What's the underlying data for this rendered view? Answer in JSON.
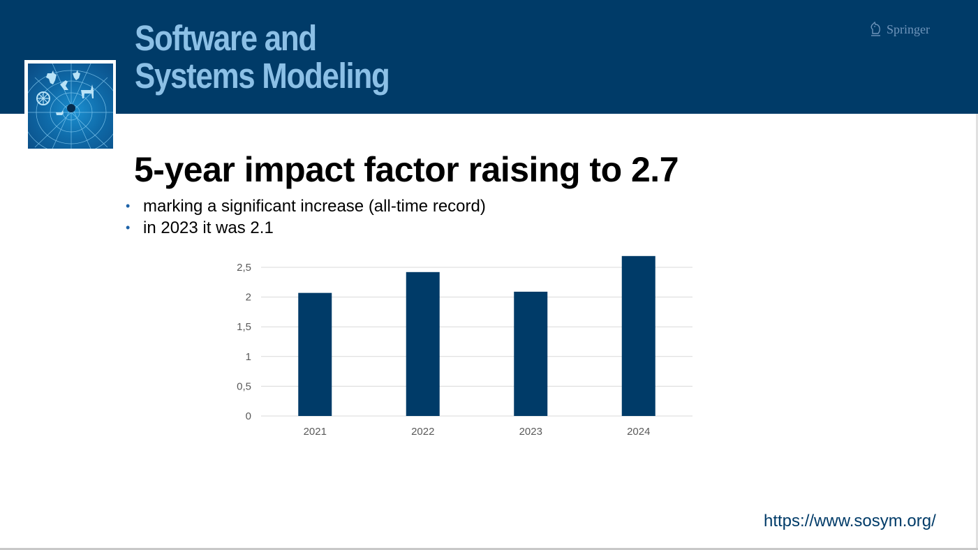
{
  "header": {
    "journal_title_line1": "Software and",
    "journal_title_line2": "Systems Modeling",
    "publisher": "Springer",
    "publisher_icon": "springer-knight-icon",
    "brand_color": "#003b68",
    "title_color": "#8cc0e6"
  },
  "slide": {
    "title": "5-year impact factor raising to 2.7",
    "bullets": [
      "marking a significant increase (all-time record)",
      "in 2023 it was 2.1"
    ],
    "url": "https://www.sosym.org/"
  },
  "chart_data": {
    "type": "bar",
    "title": "",
    "xlabel": "",
    "ylabel": "",
    "categories": [
      "2021",
      "2022",
      "2023",
      "2024"
    ],
    "values": [
      2.07,
      2.42,
      2.09,
      2.69
    ],
    "ylim": [
      0,
      2.5
    ],
    "yticks": [
      0,
      0.5,
      1,
      1.5,
      2,
      2.5
    ],
    "ytick_labels": [
      "0",
      "0,5",
      "1",
      "1,5",
      "2",
      "2,5"
    ],
    "grid": true,
    "legend": "none",
    "bar_color": "#003b68"
  }
}
